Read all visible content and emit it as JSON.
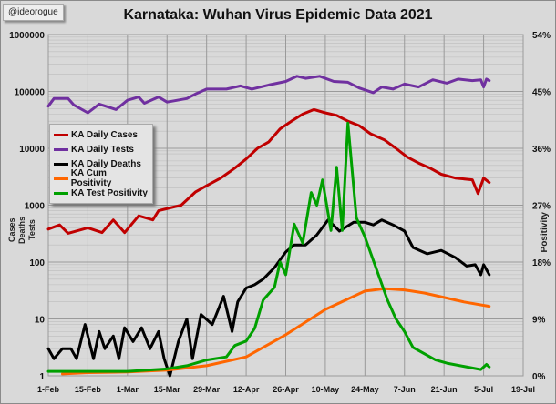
{
  "watermark": "@ideorogue",
  "chart_data": {
    "type": "line",
    "title": "Karnataka: Wuhan Virus Epidemic Data 2021",
    "ylabel_left": [
      "Cases",
      "Deaths",
      "Tests"
    ],
    "ylabel_right": "Positivity",
    "y_left_scale": "log",
    "ylim_left": [
      1,
      1000000
    ],
    "y_left_ticks": [
      "1",
      "10",
      "100",
      "1000",
      "10000",
      "100000",
      "1000000"
    ],
    "ylim_right": [
      0,
      54
    ],
    "y_right_ticks": [
      "0%",
      "9%",
      "18%",
      "27%",
      "36%",
      "45%",
      "54%"
    ],
    "x_range": [
      "2021-02-01",
      "2021-07-19"
    ],
    "x_ticks": [
      "1-Feb",
      "15-Feb",
      "1-Mar",
      "15-Mar",
      "29-Mar",
      "12-Apr",
      "26-Apr",
      "10-May",
      "24-May",
      "7-Jun",
      "21-Jun",
      "5-Jul",
      "19-Jul"
    ],
    "grid": true,
    "legend_position": "left",
    "series": [
      {
        "name": "KA Daily Cases",
        "color": "#c00000",
        "axis": "left",
        "points": [
          [
            "2021-02-01",
            380
          ],
          [
            "2021-02-05",
            450
          ],
          [
            "2021-02-08",
            320
          ],
          [
            "2021-02-15",
            400
          ],
          [
            "2021-02-20",
            330
          ],
          [
            "2021-02-24",
            550
          ],
          [
            "2021-02-28",
            330
          ],
          [
            "2021-03-05",
            650
          ],
          [
            "2021-03-10",
            550
          ],
          [
            "2021-03-12",
            800
          ],
          [
            "2021-03-20",
            1000
          ],
          [
            "2021-03-25",
            1700
          ],
          [
            "2021-03-29",
            2200
          ],
          [
            "2021-04-03",
            3000
          ],
          [
            "2021-04-08",
            4500
          ],
          [
            "2021-04-12",
            6500
          ],
          [
            "2021-04-16",
            10000
          ],
          [
            "2021-04-20",
            13000
          ],
          [
            "2021-04-24",
            22000
          ],
          [
            "2021-04-28",
            30000
          ],
          [
            "2021-05-02",
            40000
          ],
          [
            "2021-05-06",
            48000
          ],
          [
            "2021-05-10",
            42000
          ],
          [
            "2021-05-14",
            38000
          ],
          [
            "2021-05-18",
            30000
          ],
          [
            "2021-05-22",
            25000
          ],
          [
            "2021-05-26",
            18000
          ],
          [
            "2021-05-31",
            14000
          ],
          [
            "2021-06-04",
            10000
          ],
          [
            "2021-06-08",
            7000
          ],
          [
            "2021-06-12",
            5500
          ],
          [
            "2021-06-16",
            4500
          ],
          [
            "2021-06-20",
            3500
          ],
          [
            "2021-06-25",
            3000
          ],
          [
            "2021-07-01",
            2800
          ],
          [
            "2021-07-03",
            1600
          ],
          [
            "2021-07-05",
            3000
          ],
          [
            "2021-07-07",
            2500
          ]
        ]
      },
      {
        "name": "KA Daily Tests",
        "color": "#7030a0",
        "axis": "left",
        "points": [
          [
            "2021-02-01",
            55000
          ],
          [
            "2021-02-03",
            75000
          ],
          [
            "2021-02-08",
            75000
          ],
          [
            "2021-02-10",
            58000
          ],
          [
            "2021-02-15",
            42000
          ],
          [
            "2021-02-19",
            60000
          ],
          [
            "2021-02-25",
            48000
          ],
          [
            "2021-03-01",
            70000
          ],
          [
            "2021-03-05",
            80000
          ],
          [
            "2021-03-07",
            62000
          ],
          [
            "2021-03-12",
            80000
          ],
          [
            "2021-03-15",
            65000
          ],
          [
            "2021-03-22",
            75000
          ],
          [
            "2021-03-25",
            90000
          ],
          [
            "2021-03-29",
            110000
          ],
          [
            "2021-04-05",
            110000
          ],
          [
            "2021-04-10",
            125000
          ],
          [
            "2021-04-14",
            110000
          ],
          [
            "2021-04-20",
            130000
          ],
          [
            "2021-04-26",
            150000
          ],
          [
            "2021-04-30",
            185000
          ],
          [
            "2021-05-03",
            170000
          ],
          [
            "2021-05-08",
            185000
          ],
          [
            "2021-05-13",
            150000
          ],
          [
            "2021-05-18",
            145000
          ],
          [
            "2021-05-22",
            115000
          ],
          [
            "2021-05-27",
            95000
          ],
          [
            "2021-05-30",
            120000
          ],
          [
            "2021-06-03",
            110000
          ],
          [
            "2021-06-07",
            135000
          ],
          [
            "2021-06-12",
            120000
          ],
          [
            "2021-06-17",
            160000
          ],
          [
            "2021-06-22",
            140000
          ],
          [
            "2021-06-26",
            165000
          ],
          [
            "2021-07-01",
            155000
          ],
          [
            "2021-07-04",
            160000
          ],
          [
            "2021-07-05",
            120000
          ],
          [
            "2021-07-06",
            165000
          ],
          [
            "2021-07-07",
            155000
          ]
        ]
      },
      {
        "name": "KA Daily Deaths",
        "color": "#000000",
        "axis": "left",
        "points": [
          [
            "2021-02-01",
            3
          ],
          [
            "2021-02-03",
            2
          ],
          [
            "2021-02-06",
            3
          ],
          [
            "2021-02-09",
            3
          ],
          [
            "2021-02-11",
            2
          ],
          [
            "2021-02-14",
            8
          ],
          [
            "2021-02-17",
            2
          ],
          [
            "2021-02-19",
            6
          ],
          [
            "2021-02-21",
            3
          ],
          [
            "2021-02-24",
            5
          ],
          [
            "2021-02-26",
            2
          ],
          [
            "2021-02-28",
            7
          ],
          [
            "2021-03-03",
            4
          ],
          [
            "2021-03-06",
            7
          ],
          [
            "2021-03-09",
            3
          ],
          [
            "2021-03-12",
            6
          ],
          [
            "2021-03-14",
            2
          ],
          [
            "2021-03-16",
            1
          ],
          [
            "2021-03-19",
            4
          ],
          [
            "2021-03-22",
            10
          ],
          [
            "2021-03-24",
            2
          ],
          [
            "2021-03-27",
            12
          ],
          [
            "2021-03-31",
            8
          ],
          [
            "2021-04-04",
            25
          ],
          [
            "2021-04-07",
            6
          ],
          [
            "2021-04-09",
            20
          ],
          [
            "2021-04-12",
            35
          ],
          [
            "2021-04-15",
            40
          ],
          [
            "2021-04-18",
            50
          ],
          [
            "2021-04-22",
            80
          ],
          [
            "2021-04-26",
            150
          ],
          [
            "2021-04-29",
            200
          ],
          [
            "2021-05-03",
            200
          ],
          [
            "2021-05-07",
            300
          ],
          [
            "2021-05-11",
            550
          ],
          [
            "2021-05-15",
            350
          ],
          [
            "2021-05-20",
            500
          ],
          [
            "2021-05-24",
            500
          ],
          [
            "2021-05-27",
            450
          ],
          [
            "2021-05-30",
            550
          ],
          [
            "2021-06-03",
            450
          ],
          [
            "2021-06-07",
            350
          ],
          [
            "2021-06-10",
            180
          ],
          [
            "2021-06-15",
            140
          ],
          [
            "2021-06-20",
            160
          ],
          [
            "2021-06-25",
            120
          ],
          [
            "2021-06-29",
            85
          ],
          [
            "2021-07-02",
            90
          ],
          [
            "2021-07-04",
            60
          ],
          [
            "2021-07-05",
            90
          ],
          [
            "2021-07-07",
            60
          ]
        ]
      },
      {
        "name": "KA Cum Positivity",
        "color": "#ff6600",
        "axis": "right",
        "points": [
          [
            "2021-02-06",
            0.3
          ],
          [
            "2021-02-15",
            0.5
          ],
          [
            "2021-03-01",
            0.6
          ],
          [
            "2021-03-15",
            0.9
          ],
          [
            "2021-03-29",
            1.6
          ],
          [
            "2021-04-12",
            3.0
          ],
          [
            "2021-04-26",
            6.5
          ],
          [
            "2021-05-10",
            10.5
          ],
          [
            "2021-05-24",
            13.4
          ],
          [
            "2021-05-31",
            13.8
          ],
          [
            "2021-06-07",
            13.6
          ],
          [
            "2021-06-14",
            13.1
          ],
          [
            "2021-06-21",
            12.4
          ],
          [
            "2021-06-28",
            11.7
          ],
          [
            "2021-07-07",
            11.0
          ]
        ]
      },
      {
        "name": "KA Test Positivity",
        "color": "#00a000",
        "axis": "right",
        "points": [
          [
            "2021-02-01",
            0.7
          ],
          [
            "2021-02-15",
            0.7
          ],
          [
            "2021-03-01",
            0.7
          ],
          [
            "2021-03-15",
            1.1
          ],
          [
            "2021-03-22",
            1.6
          ],
          [
            "2021-03-29",
            2.5
          ],
          [
            "2021-04-05",
            3.0
          ],
          [
            "2021-04-08",
            4.8
          ],
          [
            "2021-04-12",
            5.5
          ],
          [
            "2021-04-15",
            7.5
          ],
          [
            "2021-04-18",
            12
          ],
          [
            "2021-04-22",
            14
          ],
          [
            "2021-04-24",
            18
          ],
          [
            "2021-04-26",
            16
          ],
          [
            "2021-04-29",
            24
          ],
          [
            "2021-05-02",
            21
          ],
          [
            "2021-05-05",
            29
          ],
          [
            "2021-05-07",
            27
          ],
          [
            "2021-05-09",
            31
          ],
          [
            "2021-05-12",
            23
          ],
          [
            "2021-05-14",
            33
          ],
          [
            "2021-05-16",
            23
          ],
          [
            "2021-05-18",
            40
          ],
          [
            "2021-05-21",
            25
          ],
          [
            "2021-05-24",
            22
          ],
          [
            "2021-05-28",
            17
          ],
          [
            "2021-06-01",
            12
          ],
          [
            "2021-06-04",
            9
          ],
          [
            "2021-06-07",
            7
          ],
          [
            "2021-06-10",
            4.5
          ],
          [
            "2021-06-14",
            3.5
          ],
          [
            "2021-06-18",
            2.5
          ],
          [
            "2021-06-22",
            2.0
          ],
          [
            "2021-06-28",
            1.5
          ],
          [
            "2021-07-04",
            1.0
          ],
          [
            "2021-07-06",
            1.8
          ],
          [
            "2021-07-07",
            1.4
          ]
        ]
      }
    ]
  }
}
